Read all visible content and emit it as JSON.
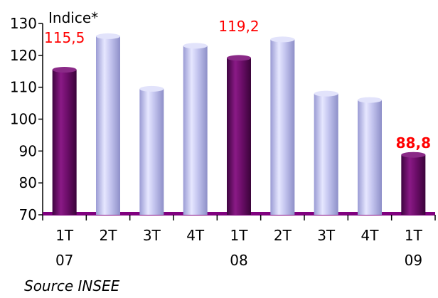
{
  "chart_data": {
    "type": "bar",
    "title": "",
    "ylabel": "Indice*",
    "xlabel": "",
    "ylim": [
      70,
      130
    ],
    "yticks": [
      70,
      80,
      90,
      100,
      110,
      120,
      130
    ],
    "categories": [
      {
        "top": "1T",
        "bottom": "07"
      },
      {
        "top": "2T",
        "bottom": ""
      },
      {
        "top": "3T",
        "bottom": ""
      },
      {
        "top": "4T",
        "bottom": ""
      },
      {
        "top": "1T",
        "bottom": "08"
      },
      {
        "top": "2T",
        "bottom": ""
      },
      {
        "top": "3T",
        "bottom": ""
      },
      {
        "top": "4T",
        "bottom": ""
      },
      {
        "top": "1T",
        "bottom": "09"
      }
    ],
    "values": [
      115.5,
      126,
      109.5,
      123,
      119.2,
      125,
      108,
      106,
      88.8
    ],
    "highlighted": [
      true,
      false,
      false,
      false,
      true,
      false,
      false,
      false,
      true
    ],
    "data_labels": [
      {
        "index": 0,
        "text": "115,5",
        "bold": false
      },
      {
        "index": 4,
        "text": "119,2",
        "bold": false
      },
      {
        "index": 8,
        "text": "88,8",
        "bold": true
      }
    ],
    "grid": false,
    "colors": {
      "highlight_bar": "#6e0e6b",
      "normal_bar": "#c4c5ef",
      "baseline": "#80007f",
      "data_label": "#ff0000"
    }
  },
  "source": "Source INSEE"
}
